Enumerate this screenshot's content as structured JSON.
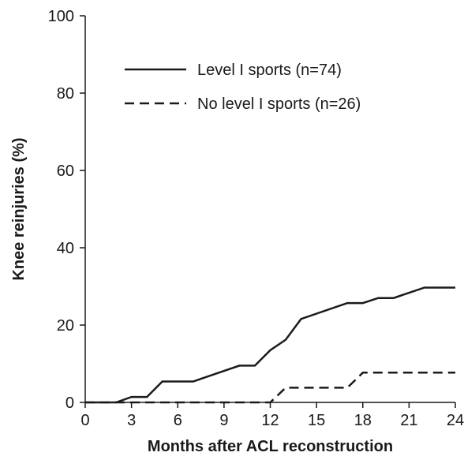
{
  "chart_data": {
    "type": "line",
    "title": "",
    "xlabel": "Months after ACL reconstruction",
    "ylabel": "Knee reinjuries (%)",
    "xlim": [
      0,
      24
    ],
    "ylim": [
      0,
      100
    ],
    "xticks": [
      0,
      3,
      6,
      9,
      12,
      15,
      18,
      21,
      24
    ],
    "yticks": [
      0,
      20,
      40,
      60,
      80,
      100
    ],
    "xtick_labels": [
      "0",
      "3",
      "6",
      "9",
      "12",
      "15",
      "18",
      "21",
      "24"
    ],
    "ytick_labels": [
      "0",
      "20",
      "40",
      "60",
      "80",
      "100"
    ],
    "grid": false,
    "legend_position": "top-center",
    "series": [
      {
        "name": "Level I sports (n=74)",
        "style": "solid",
        "color": "#1a1a1a",
        "x": [
          0,
          2,
          3,
          4,
          5,
          7,
          10,
          11,
          12,
          13,
          14,
          17,
          18,
          19,
          20,
          22,
          24
        ],
        "y": [
          0,
          0,
          1.4,
          1.4,
          5.4,
          5.4,
          9.5,
          9.5,
          13.5,
          16.2,
          21.6,
          25.7,
          25.7,
          27.0,
          27.0,
          29.7,
          29.7
        ]
      },
      {
        "name": "No level I sports (n=26)",
        "style": "dashed",
        "color": "#1a1a1a",
        "x": [
          0,
          12,
          13,
          17,
          18,
          24
        ],
        "y": [
          0,
          0,
          3.8,
          3.8,
          7.7,
          7.7
        ]
      }
    ]
  }
}
